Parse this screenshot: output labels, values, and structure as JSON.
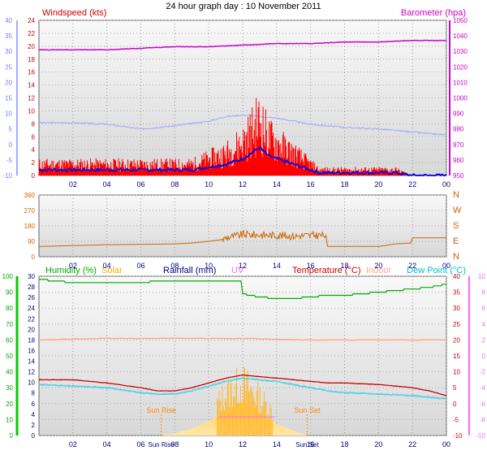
{
  "title": "24 hour graph day : 10 November 2011",
  "x_ticks": [
    "02",
    "04",
    "06",
    "08",
    "10",
    "12",
    "14",
    "16",
    "18",
    "20",
    "22",
    "00"
  ],
  "colors": {
    "wind": "#ff0000",
    "gust": "#0000dd",
    "temp_in_wind_panel": "#a0a8ff",
    "barometer": "#cc00cc",
    "wind_dir": "#cc6600",
    "humidity": "#00aa00",
    "solar": "#ffcc55",
    "rainfall": "#000080",
    "uv": "#ff66ff",
    "temperature": "#cc0000",
    "indoor": "#ffccaa",
    "dewpoint": "#33dddd",
    "sun_marker": "#ff8800"
  },
  "chart_data": [
    {
      "type": "line",
      "panel": "wind",
      "labels": {
        "left": "Windspeed (kts)",
        "right": "Barometer (hpa)"
      },
      "left_axis_blue": [
        "-10",
        "-5",
        "0",
        "5",
        "10",
        "15",
        "20",
        "25",
        "30",
        "35",
        "40"
      ],
      "left_axis_red": [
        "0",
        "2",
        "4",
        "6",
        "8",
        "10",
        "12",
        "14",
        "16",
        "18",
        "20",
        "22",
        "24"
      ],
      "right_axis": [
        "950",
        "960",
        "970",
        "980",
        "990",
        "1000",
        "1010",
        "1020",
        "1030",
        "1040",
        "1050"
      ],
      "ylim_wind_kts": [
        0,
        25
      ],
      "ylim_baro_hpa": [
        950,
        1050
      ],
      "series": [
        {
          "name": "Windspeed (kts)",
          "x": [
            0,
            1,
            2,
            3,
            4,
            5,
            6,
            7,
            8,
            9,
            10,
            11,
            11.5,
            12,
            12.5,
            13,
            13.5,
            14,
            14.5,
            15,
            15.5,
            16,
            16.5,
            17,
            18,
            19,
            20,
            21,
            22,
            23,
            24
          ],
          "values": [
            2,
            2,
            2,
            2,
            2,
            2,
            2,
            2,
            2,
            2,
            3,
            4,
            5,
            6,
            8,
            10,
            7,
            6,
            5,
            4,
            3,
            2,
            1,
            1,
            1,
            1,
            1,
            1,
            0,
            0,
            0
          ]
        },
        {
          "name": "Barometer (hpa)",
          "x": [
            0,
            2,
            4,
            6,
            8,
            10,
            12,
            14,
            16,
            18,
            20,
            22,
            24
          ],
          "values": [
            1031,
            1031,
            1031,
            1032,
            1033,
            1033,
            1034,
            1035,
            1035,
            1036,
            1036,
            1037,
            1037
          ]
        },
        {
          "name": "Temperature",
          "x": [
            0,
            2,
            4,
            6,
            7,
            8,
            10,
            11,
            12,
            13,
            14,
            16,
            18,
            20,
            22,
            24
          ],
          "values": [
            7,
            7,
            6.5,
            5,
            5.5,
            6,
            7.5,
            9,
            9.5,
            9,
            8.5,
            6.5,
            5.5,
            5,
            4,
            3
          ]
        }
      ]
    },
    {
      "type": "line",
      "panel": "wind_direction",
      "left_axis": [
        "0",
        "90",
        "180",
        "270",
        "360"
      ],
      "right_axis": [
        "N",
        "E",
        "S",
        "W",
        "N"
      ],
      "ylim": [
        0,
        360
      ],
      "series": [
        {
          "name": "Wind direction",
          "x": [
            0,
            2,
            4,
            6,
            8,
            9,
            10,
            10.8,
            11,
            11.5,
            12,
            14,
            15,
            16,
            16.9,
            17,
            18,
            19,
            20,
            21,
            21.9,
            22,
            24
          ],
          "values": [
            60,
            65,
            70,
            72,
            75,
            80,
            90,
            100,
            110,
            120,
            130,
            125,
            120,
            125,
            125,
            60,
            60,
            60,
            60,
            75,
            80,
            110,
            110
          ]
        }
      ]
    },
    {
      "type": "line",
      "panel": "humidity_temp",
      "labels": {
        "humidity": "Humidity (%)",
        "solar": "Solar",
        "rainfall": "Rainfall (mm)",
        "uv": "UV",
        "temperature": "Temperature (°C)",
        "indoor": "Indoor",
        "dewpoint": "Dew Point (°C)"
      },
      "axis_humidity": [
        "0",
        "10",
        "20",
        "30",
        "40",
        "50",
        "60",
        "70",
        "80",
        "90",
        "100"
      ],
      "axis_rain": [
        "0",
        "2",
        "4",
        "6",
        "8",
        "10",
        "12",
        "14",
        "16",
        "18",
        "20",
        "22",
        "24",
        "26",
        "28",
        "30"
      ],
      "axis_temp": [
        "-10",
        "-5",
        "0",
        "5",
        "10",
        "15",
        "20",
        "25",
        "30",
        "35",
        "40"
      ],
      "axis_uv": [
        "-10",
        "-8",
        "-6",
        "-4",
        "-2",
        "0",
        "2",
        "4",
        "6",
        "8",
        "10"
      ],
      "ylim_temp_c": [
        -10,
        40
      ],
      "series": [
        {
          "name": "Humidity (%)",
          "x": [
            0,
            1,
            2,
            3,
            4,
            5,
            6,
            7,
            8,
            9,
            10,
            11,
            11.9,
            12,
            13,
            14,
            15,
            16,
            17,
            18,
            19,
            20,
            21,
            22,
            23,
            24
          ],
          "values": [
            98,
            97,
            96,
            96,
            96,
            96,
            96,
            97,
            97,
            97,
            97,
            97,
            97,
            89,
            87,
            86,
            86,
            87,
            88,
            88,
            89,
            90,
            91,
            92,
            93,
            95
          ]
        },
        {
          "name": "Temperature (°C)",
          "x": [
            0,
            2,
            4,
            6,
            7,
            8,
            9,
            10,
            11,
            12,
            13,
            14,
            15,
            16,
            17,
            18,
            20,
            22,
            23,
            24
          ],
          "values": [
            7.5,
            7.5,
            6.5,
            5,
            4,
            4,
            5,
            6.5,
            8,
            9,
            8.5,
            8,
            7.5,
            7,
            6.5,
            6.5,
            6,
            5,
            4,
            2.5
          ]
        },
        {
          "name": "Dew Point (°C)",
          "x": [
            0,
            2,
            4,
            6,
            7,
            8,
            9,
            10,
            11,
            12,
            13,
            14,
            15,
            16,
            17,
            18,
            20,
            22,
            23,
            24
          ],
          "values": [
            6,
            5.5,
            5,
            3.5,
            3,
            3,
            4,
            5.5,
            7,
            8,
            7.5,
            7,
            6,
            5,
            4,
            3.5,
            3,
            2.5,
            2,
            1.5
          ]
        },
        {
          "name": "Indoor",
          "x": [
            0,
            4,
            8,
            12,
            16,
            20,
            24
          ],
          "values": [
            20,
            20.5,
            20.5,
            20.5,
            20,
            20,
            20
          ]
        }
      ],
      "sun_markers": [
        {
          "label": "Sun Rise",
          "tick_label": "Sun Rise",
          "x": 7.2
        },
        {
          "label": "Sun Set",
          "tick_label": "Sun Set",
          "x": 15.8
        }
      ],
      "solar": {
        "x": [
          7.2,
          8,
          9,
          10,
          11,
          12,
          13,
          14,
          15,
          15.8
        ],
        "values": [
          0,
          2,
          6,
          12,
          22,
          28,
          20,
          10,
          4,
          0
        ]
      }
    }
  ]
}
